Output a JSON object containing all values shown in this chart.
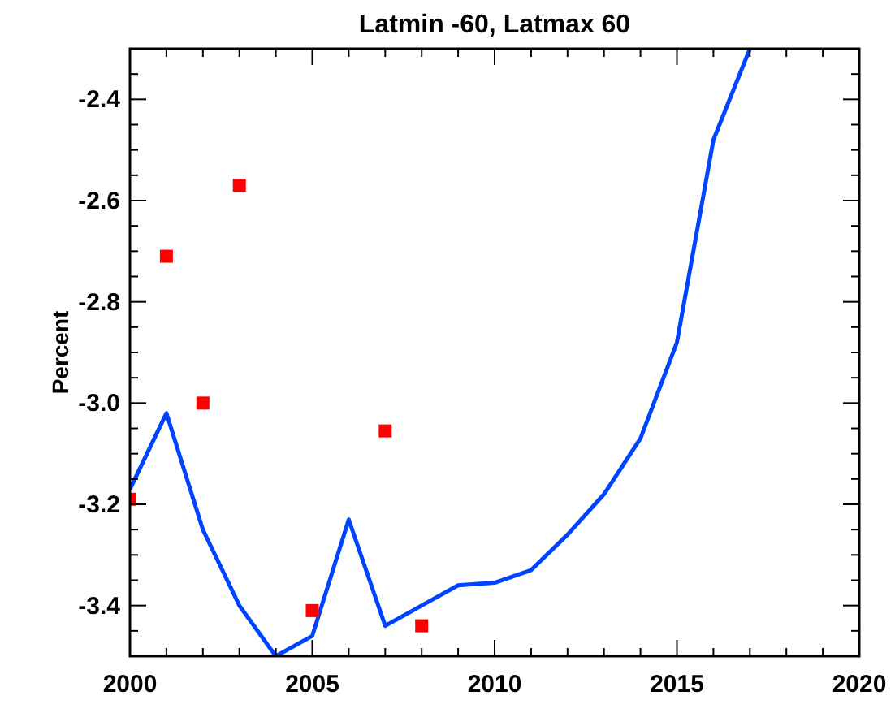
{
  "chart_data": {
    "type": "line",
    "title": "Latmin -60, Latmax 60",
    "ylabel": "Percent",
    "xlim": [
      2000,
      2020
    ],
    "ylim": [
      -3.5,
      -2.3
    ],
    "xticks": [
      2000,
      {
        "value": 2001,
        "label": null
      },
      {
        "value": 2002,
        "label": null
      },
      {
        "value": 2003,
        "label": null
      },
      {
        "value": 2004,
        "label": null
      },
      2005,
      {
        "value": 2006,
        "label": null
      },
      {
        "value": 2007,
        "label": null
      },
      {
        "value": 2008,
        "label": null
      },
      {
        "value": 2009,
        "label": null
      },
      2010,
      {
        "value": 2011,
        "label": null
      },
      {
        "value": 2012,
        "label": null
      },
      {
        "value": 2013,
        "label": null
      },
      {
        "value": 2014,
        "label": null
      },
      2015,
      {
        "value": 2016,
        "label": null
      },
      {
        "value": 2017,
        "label": null
      },
      {
        "value": 2018,
        "label": null
      },
      {
        "value": 2019,
        "label": null
      },
      2020
    ],
    "yticks": [
      {
        "value": -3.45,
        "label": null
      },
      {
        "value": -3.4,
        "label": "-3.4"
      },
      {
        "value": -3.35,
        "label": null
      },
      {
        "value": -3.3,
        "label": null
      },
      {
        "value": -3.25,
        "label": null
      },
      {
        "value": -3.2,
        "label": "-3.2"
      },
      {
        "value": -3.15,
        "label": null
      },
      {
        "value": -3.1,
        "label": null
      },
      {
        "value": -3.05,
        "label": null
      },
      {
        "value": -3.0,
        "label": "-3.0"
      },
      {
        "value": -2.95,
        "label": null
      },
      {
        "value": -2.9,
        "label": null
      },
      {
        "value": -2.85,
        "label": null
      },
      {
        "value": -2.8,
        "label": "-2.8"
      },
      {
        "value": -2.75,
        "label": null
      },
      {
        "value": -2.7,
        "label": null
      },
      {
        "value": -2.65,
        "label": null
      },
      {
        "value": -2.6,
        "label": "-2.6"
      },
      {
        "value": -2.55,
        "label": null
      },
      {
        "value": -2.5,
        "label": null
      },
      {
        "value": -2.45,
        "label": null
      },
      {
        "value": -2.4,
        "label": "-2.4"
      },
      {
        "value": -2.35,
        "label": null
      },
      {
        "value": -2.3,
        "label": null
      }
    ],
    "grid": false,
    "series": [
      {
        "color": "#0044ff",
        "marker": "none",
        "line_style": "solid",
        "x": [
          2000,
          2001,
          2002,
          2003,
          2004,
          2005,
          2006,
          2007,
          2008,
          2009,
          2010,
          2011,
          2012,
          2013,
          2014,
          2015,
          2016,
          2017
        ],
        "values": [
          -3.17,
          -3.02,
          -3.25,
          -3.4,
          -3.5,
          -3.46,
          -3.23,
          -3.44,
          -3.4,
          -3.36,
          -3.355,
          -3.33,
          -3.26,
          -3.18,
          -3.07,
          -2.88,
          -2.48,
          -2.3
        ]
      },
      {
        "type": "scatter",
        "color": "#ff0000",
        "marker": "square",
        "x": [
          2000,
          2001,
          2002,
          2003,
          2005,
          2007,
          2008
        ],
        "values": [
          -3.19,
          -2.71,
          -3.0,
          -2.57,
          -3.41,
          -3.055,
          -3.44
        ]
      }
    ]
  }
}
